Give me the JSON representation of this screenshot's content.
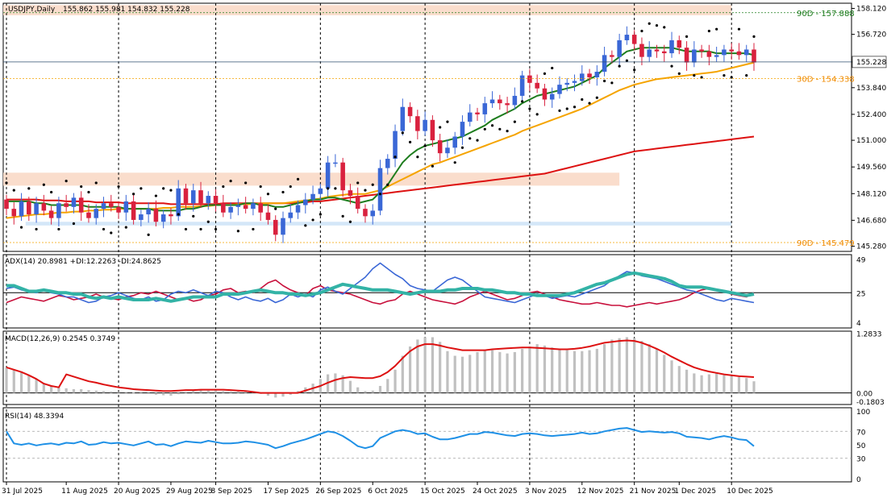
{
  "chart_data": {
    "type": "candlestick",
    "symbol_label": "USDJPY,Daily",
    "ohlc_label": "155.862 155.981 154.832 155.228",
    "colors": {
      "bull": "#3a67d6",
      "bear": "#d9213e",
      "ma_green": "#1e7d1e",
      "ma_orange": "#f5a400",
      "ma_red": "#dd1111",
      "adx": "#33b3a6",
      "plus_di": "#3a67d6",
      "minus_di": "#c8103c",
      "macd_hist": "#c0c0c0",
      "macd_signal": "#dd1111",
      "rsi": "#1e90e6",
      "zone_orange": "#f9d9c6",
      "zone_blue": "#cfe4f7",
      "psar": "#000000"
    },
    "price_axis": {
      "ticks": [
        "158.120",
        "156.720",
        "155.228",
        "153.840",
        "152.400",
        "151.000",
        "149.560",
        "148.120",
        "146.680",
        "145.280"
      ],
      "current": "155.228"
    },
    "levels": [
      {
        "label": "90D - 157.888",
        "value": 157.888
      },
      {
        "label": "30D - 154.338",
        "value": 154.338
      },
      {
        "label": "90D - 145.479",
        "value": 145.479
      }
    ],
    "zones": [
      {
        "from": 157.75,
        "to": 158.3,
        "start": 0,
        "end": 97
      },
      {
        "from": 148.55,
        "to": 149.25,
        "start": 0,
        "end": 82
      },
      {
        "from": 146.4,
        "to": 146.6,
        "start": 3,
        "end": 97
      }
    ],
    "date_ticks": [
      {
        "label": "31 Jul 2025",
        "index": 0
      },
      {
        "label": "11 Aug 2025",
        "index": 8
      },
      {
        "label": "20 Aug 2025",
        "index": 15
      },
      {
        "label": "29 Aug 2025",
        "index": 22
      },
      {
        "label": "8 Sep 2025",
        "index": 28
      },
      {
        "label": "17 Sep 2025",
        "index": 35
      },
      {
        "label": "26 Sep 2025",
        "index": 42
      },
      {
        "label": "6 Oct 2025",
        "index": 49
      },
      {
        "label": "15 Oct 2025",
        "index": 56
      },
      {
        "label": "24 Oct 2025",
        "index": 63
      },
      {
        "label": "3 Nov 2025",
        "index": 70
      },
      {
        "label": "12 Nov 2025",
        "index": 77
      },
      {
        "label": "21 Nov 2025",
        "index": 84
      },
      {
        "label": "1 Dec 2025",
        "index": 90
      },
      {
        "label": "10 Dec 2025",
        "index": 97
      }
    ],
    "closes": [
      147.3,
      146.9,
      147.7,
      147.0,
      147.6,
      147.2,
      146.8,
      147.6,
      147.4,
      147.9,
      147.1,
      146.8,
      147.3,
      147.6,
      147.4,
      147.1,
      147.7,
      146.7,
      147.0,
      147.3,
      146.6,
      147.0,
      146.9,
      148.4,
      147.6,
      148.3,
      147.6,
      148.0,
      147.6,
      147.1,
      147.4,
      147.5,
      147.3,
      147.6,
      147.1,
      146.7,
      145.9,
      146.8,
      147.1,
      147.5,
      147.8,
      148.1,
      148.4,
      149.8,
      149.8,
      148.3,
      148.0,
      147.3,
      146.9,
      147.2,
      149.5,
      150.0,
      151.5,
      152.8,
      152.3,
      151.5,
      152.1,
      151.0,
      150.3,
      150.6,
      151.2,
      152.0,
      152.5,
      152.4,
      153.0,
      153.2,
      153.0,
      152.9,
      153.4,
      154.5,
      154.1,
      153.8,
      153.2,
      153.5,
      154.0,
      154.1,
      154.2,
      154.6,
      154.4,
      154.7,
      155.6,
      155.5,
      156.4,
      156.7,
      156.2,
      155.5,
      155.9,
      155.8,
      155.7,
      156.4,
      156.0,
      155.2,
      155.9,
      155.8,
      155.5,
      155.6,
      155.9,
      155.8,
      155.6,
      155.9,
      155.2
    ],
    "ma_green": [
      147.7,
      147.7,
      147.7,
      147.7,
      147.6,
      147.6,
      147.5,
      147.5,
      147.5,
      147.5,
      147.5,
      147.4,
      147.4,
      147.4,
      147.4,
      147.4,
      147.3,
      147.3,
      147.3,
      147.3,
      147.2,
      147.2,
      147.2,
      147.2,
      147.3,
      147.3,
      147.4,
      147.5,
      147.5,
      147.5,
      147.5,
      147.5,
      147.6,
      147.6,
      147.5,
      147.5,
      147.4,
      147.4,
      147.5,
      147.6,
      147.7,
      147.8,
      147.8,
      147.9,
      147.9,
      147.8,
      147.7,
      147.6,
      147.7,
      147.8,
      148.2,
      148.6,
      149.2,
      149.8,
      150.2,
      150.5,
      150.7,
      150.8,
      150.9,
      151.0,
      151.1,
      151.2,
      151.4,
      151.6,
      151.8,
      152.1,
      152.3,
      152.5,
      152.7,
      153.0,
      153.2,
      153.4,
      153.5,
      153.6,
      153.7,
      153.8,
      153.9,
      154.1,
      154.3,
      154.5,
      154.9,
      155.2,
      155.5,
      155.8,
      155.9,
      156.0,
      156.0,
      156.0,
      156.0,
      156.0,
      155.9,
      155.8,
      155.8,
      155.8,
      155.8,
      155.7,
      155.7,
      155.7,
      155.7,
      155.7,
      155.6
    ],
    "ma_orange": [
      146.8,
      146.85,
      146.9,
      146.95,
      147.0,
      147.0,
      147.05,
      147.1,
      147.1,
      147.15,
      147.15,
      147.2,
      147.2,
      147.25,
      147.25,
      147.3,
      147.3,
      147.3,
      147.3,
      147.3,
      147.3,
      147.35,
      147.35,
      147.4,
      147.4,
      147.4,
      147.45,
      147.45,
      147.5,
      147.5,
      147.5,
      147.55,
      147.55,
      147.55,
      147.6,
      147.6,
      147.6,
      147.6,
      147.65,
      147.7,
      147.75,
      147.8,
      147.85,
      147.95,
      148.0,
      148.05,
      148.1,
      148.1,
      148.1,
      148.2,
      148.3,
      148.5,
      148.7,
      148.9,
      149.1,
      149.3,
      149.5,
      149.7,
      149.8,
      149.95,
      150.1,
      150.25,
      150.4,
      150.55,
      150.7,
      150.85,
      151.0,
      151.15,
      151.3,
      151.5,
      151.65,
      151.8,
      151.95,
      152.1,
      152.25,
      152.4,
      152.55,
      152.7,
      152.9,
      153.1,
      153.3,
      153.5,
      153.7,
      153.85,
      154.0,
      154.1,
      154.2,
      154.3,
      154.35,
      154.4,
      154.45,
      154.5,
      154.55,
      154.6,
      154.65,
      154.7,
      154.8,
      154.9,
      155.0,
      155.1,
      155.2
    ],
    "ma_red": [
      147.8,
      147.8,
      147.8,
      147.8,
      147.8,
      147.75,
      147.75,
      147.75,
      147.7,
      147.7,
      147.7,
      147.7,
      147.65,
      147.65,
      147.65,
      147.65,
      147.6,
      147.6,
      147.6,
      147.6,
      147.6,
      147.6,
      147.55,
      147.55,
      147.55,
      147.55,
      147.55,
      147.55,
      147.55,
      147.6,
      147.6,
      147.6,
      147.6,
      147.6,
      147.6,
      147.6,
      147.6,
      147.6,
      147.6,
      147.65,
      147.65,
      147.7,
      147.7,
      147.75,
      147.8,
      147.85,
      147.9,
      147.95,
      148.0,
      148.05,
      148.1,
      148.15,
      148.2,
      148.25,
      148.3,
      148.35,
      148.4,
      148.45,
      148.5,
      148.55,
      148.6,
      148.65,
      148.7,
      148.75,
      148.8,
      148.85,
      148.9,
      148.95,
      149.0,
      149.05,
      149.1,
      149.15,
      149.2,
      149.3,
      149.4,
      149.5,
      149.6,
      149.7,
      149.8,
      149.9,
      150.0,
      150.1,
      150.2,
      150.3,
      150.4,
      150.45,
      150.5,
      150.55,
      150.6,
      150.65,
      150.7,
      150.75,
      150.8,
      150.85,
      150.9,
      150.95,
      151.0,
      151.05,
      151.1,
      151.15,
      151.2
    ],
    "adx": {
      "label": "ADX(14) 20.8981 +DI:12.2263 -DI:24.8625",
      "ticks": [
        "49",
        "25",
        "4"
      ],
      "level": 25
    },
    "adx_line": [
      30,
      30,
      28,
      26,
      26,
      27,
      26,
      25,
      25,
      24,
      24,
      22,
      21,
      22,
      21,
      22,
      21,
      20,
      20,
      20,
      21,
      20,
      19,
      20,
      21,
      22,
      22,
      22,
      22,
      24,
      24,
      24,
      25,
      26,
      27,
      26,
      25,
      25,
      24,
      24,
      23,
      24,
      25,
      27,
      29,
      31,
      30,
      29,
      28,
      27,
      27,
      27,
      26,
      25,
      24,
      25,
      26,
      26,
      26,
      27,
      27,
      28,
      28,
      28,
      27,
      27,
      26,
      25,
      25,
      24,
      24,
      23,
      23,
      23,
      23,
      24,
      25,
      27,
      29,
      31,
      32,
      34,
      36,
      38,
      39,
      38,
      37,
      36,
      35,
      33,
      30,
      29,
      29,
      29,
      28,
      27,
      26,
      25,
      24,
      23,
      24
    ],
    "plus_di": [
      28,
      29,
      27,
      26,
      25,
      27,
      25,
      24,
      22,
      22,
      20,
      18,
      19,
      22,
      23,
      25,
      23,
      21,
      20,
      22,
      19,
      20,
      24,
      26,
      25,
      27,
      25,
      23,
      26,
      25,
      22,
      20,
      22,
      20,
      19,
      21,
      18,
      20,
      24,
      22,
      24,
      22,
      27,
      29,
      26,
      24,
      28,
      32,
      36,
      42,
      46,
      42,
      38,
      35,
      30,
      28,
      27,
      26,
      30,
      34,
      36,
      34,
      30,
      26,
      22,
      21,
      20,
      19,
      18,
      20,
      22,
      24,
      23,
      21,
      22,
      23,
      22,
      24,
      26,
      28,
      30,
      34,
      37,
      40,
      39,
      37,
      36,
      35,
      33,
      31,
      29,
      27,
      26,
      24,
      22,
      20,
      19,
      21,
      20,
      19,
      18
    ],
    "minus_di": [
      18,
      20,
      22,
      21,
      20,
      19,
      21,
      23,
      22,
      20,
      21,
      22,
      24,
      22,
      21,
      20,
      22,
      23,
      25,
      24,
      26,
      24,
      22,
      20,
      21,
      19,
      20,
      23,
      24,
      27,
      28,
      25,
      26,
      25,
      28,
      32,
      34,
      30,
      27,
      25,
      23,
      28,
      30,
      27,
      26,
      25,
      24,
      22,
      20,
      18,
      17,
      19,
      20,
      24,
      26,
      24,
      22,
      20,
      19,
      18,
      17,
      19,
      22,
      24,
      26,
      24,
      22,
      20,
      21,
      23,
      25,
      26,
      24,
      22,
      20,
      19,
      18,
      17,
      17,
      18,
      17,
      16,
      16,
      15,
      16,
      17,
      18,
      17,
      18,
      19,
      20,
      22,
      25,
      27,
      28,
      27,
      26,
      24,
      23,
      22,
      25
    ],
    "macd": {
      "label": "MACD(12,26,9) 0.2545 0.3749",
      "ticks": [
        "1.2833",
        "0.00",
        "-0.1803"
      ]
    },
    "macd_hist": [
      0.55,
      0.5,
      0.45,
      0.38,
      0.3,
      0.2,
      0.15,
      0.12,
      0.1,
      0.08,
      0.08,
      0.06,
      0.05,
      0.04,
      0.03,
      0.02,
      0.0,
      0.01,
      0.0,
      -0.02,
      -0.04,
      -0.05,
      -0.06,
      -0.03,
      0.02,
      0.05,
      0.06,
      0.05,
      0.06,
      0.04,
      0.03,
      0.03,
      0.03,
      0.02,
      -0.02,
      -0.06,
      -0.1,
      -0.08,
      -0.04,
      0.04,
      0.12,
      0.2,
      0.3,
      0.4,
      0.42,
      0.38,
      0.26,
      0.12,
      0.04,
      0.05,
      0.15,
      0.3,
      0.5,
      0.8,
      1.0,
      1.15,
      1.2,
      1.2,
      1.1,
      0.9,
      0.8,
      0.78,
      0.82,
      0.88,
      0.92,
      0.92,
      0.88,
      0.85,
      0.88,
      0.95,
      1.0,
      1.05,
      1.02,
      0.98,
      0.95,
      0.92,
      0.9,
      0.9,
      0.92,
      0.95,
      1.05,
      1.15,
      1.18,
      1.2,
      1.18,
      1.12,
      1.05,
      0.95,
      0.82,
      0.7,
      0.58,
      0.5,
      0.42,
      0.38,
      0.4,
      0.42,
      0.38,
      0.36,
      0.34,
      0.32,
      0.25
    ],
    "macd_signal": [
      0.0,
      0.0,
      0.0,
      0.0,
      0.0,
      0.0,
      0.0,
      0.0,
      0.4,
      0.35,
      0.3,
      0.25,
      0.22,
      0.18,
      0.15,
      0.12,
      0.1,
      0.08,
      0.07,
      0.06,
      0.05,
      0.04,
      0.04,
      0.05,
      0.06,
      0.06,
      0.07,
      0.07,
      0.07,
      0.07,
      0.06,
      0.05,
      0.04,
      0.02,
      0.0,
      0.0,
      0.0,
      0.0,
      0.0,
      0.0,
      0.05,
      0.1,
      0.15,
      0.22,
      0.28,
      0.32,
      0.34,
      0.33,
      0.32,
      0.32,
      0.36,
      0.45,
      0.58,
      0.75,
      0.9,
      1.0,
      1.05,
      1.05,
      1.02,
      0.98,
      0.95,
      0.92,
      0.92,
      0.92,
      0.92,
      0.94,
      0.95,
      0.96,
      0.97,
      0.98,
      0.98,
      0.97,
      0.96,
      0.95,
      0.94,
      0.94,
      0.95,
      0.97,
      1.0,
      1.04,
      1.08,
      1.1,
      1.12,
      1.13,
      1.12,
      1.08,
      1.02,
      0.95,
      0.87,
      0.78,
      0.7,
      0.62,
      0.55,
      0.5,
      0.46,
      0.43,
      0.4,
      0.38,
      0.36,
      0.35,
      0.34
    ],
    "rsi": {
      "label": "RSI(14) 48.3394",
      "ticks": [
        "100",
        "70",
        "50",
        "30",
        "0"
      ]
    },
    "rsi_line": [
      70,
      52,
      50,
      52,
      49,
      51,
      52,
      50,
      53,
      52,
      55,
      50,
      51,
      54,
      52,
      53,
      51,
      49,
      52,
      55,
      50,
      51,
      48,
      52,
      55,
      54,
      53,
      56,
      54,
      52,
      52,
      53,
      55,
      54,
      52,
      50,
      45,
      48,
      52,
      55,
      58,
      62,
      66,
      70,
      68,
      63,
      56,
      48,
      45,
      48,
      60,
      65,
      70,
      72,
      70,
      66,
      67,
      62,
      58,
      58,
      60,
      63,
      66,
      66,
      69,
      68,
      66,
      64,
      63,
      66,
      67,
      66,
      64,
      63,
      64,
      65,
      66,
      68,
      66,
      67,
      70,
      72,
      74,
      75,
      72,
      69,
      70,
      69,
      68,
      69,
      67,
      62,
      61,
      60,
      58,
      61,
      63,
      61,
      58,
      57,
      48
    ]
  }
}
